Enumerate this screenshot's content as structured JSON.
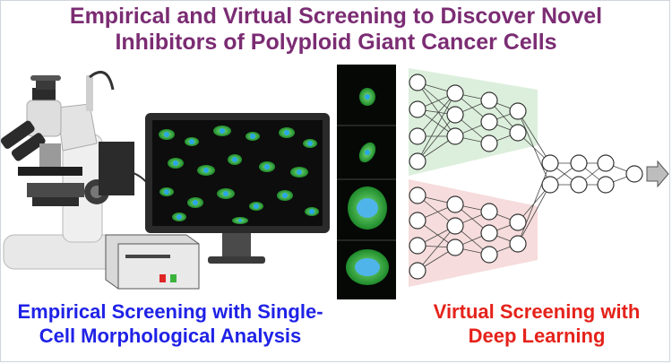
{
  "title": {
    "line1": "Empirical and Virtual Screening to Discover Novel",
    "line2": "Inhibitors of Polyploid Giant Cancer Cells"
  },
  "captions": {
    "empirical_line1": "Empirical Screening with Single-",
    "empirical_line2": "Cell Morphological Analysis",
    "virtual_line1": "Virtual Screening with",
    "virtual_line2": "Deep Learning"
  },
  "colors": {
    "title": "#7b2c73",
    "empirical": "#1f22e6",
    "virtual": "#e5221a",
    "upper_network_fill": "#dcefdc",
    "lower_network_fill": "#f6dcdc",
    "cell_green": "#3ec43e",
    "nucleus_blue": "#2aa7e6"
  },
  "icons": [
    "microscope-icon",
    "monitor-icon",
    "controller-box-icon",
    "cell-image-strip",
    "neural-network-icon",
    "output-arrow-icon"
  ]
}
